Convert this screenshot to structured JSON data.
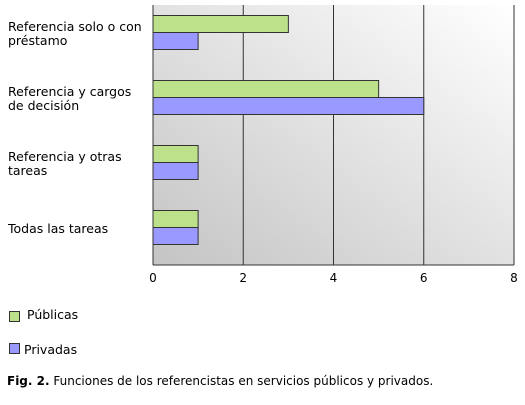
{
  "chart_data": {
    "type": "bar",
    "orientation": "horizontal",
    "categories": [
      "Referencia solo o con préstamo",
      "Referencia y cargos de decisión",
      "Referencia y otras tareas",
      "Todas las tareas"
    ],
    "series": [
      {
        "name": "Públicas",
        "color": "#bde08a",
        "values": [
          3,
          5,
          1,
          1
        ]
      },
      {
        "name": "Privadas",
        "color": "#9999ff",
        "values": [
          1,
          6,
          1,
          1
        ]
      }
    ],
    "xlim": [
      0,
      8
    ],
    "xticks": [
      0,
      2,
      4,
      6,
      8
    ],
    "grid": true
  },
  "caption": {
    "label": "Fig. 2.",
    "text": "Funciones de los referencistas en servicios públicos y privados."
  }
}
